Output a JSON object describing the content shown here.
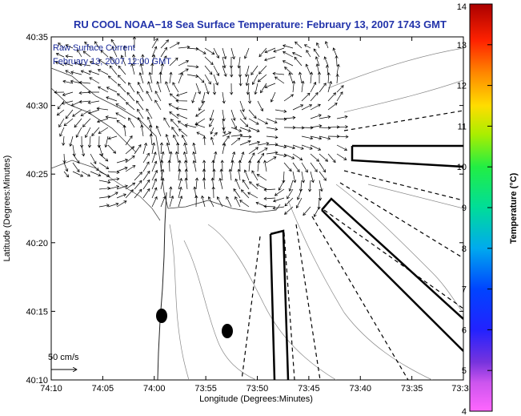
{
  "title": "RU COOL  NOAA−18  Sea Surface Temperature:  February 13, 2007 1743 GMT",
  "legend": {
    "line1": "Raw Surface Current",
    "line2": "February 13, 2007 12:00 GMT",
    "scale_label": "50 cm/s"
  },
  "chart_data": {
    "type": "map",
    "xlabel": "Longitude (Degrees:Minutes)",
    "ylabel": "Latitude (Degrees:Minutes)",
    "x_ticks": [
      "74:10",
      "74:05",
      "74:00",
      "73:55",
      "73:50",
      "73:45",
      "73:40",
      "73:35",
      "73:3"
    ],
    "y_ticks": [
      "40:35",
      "40:30",
      "40:25",
      "40:20",
      "40:15",
      "40:10"
    ],
    "xlim": [
      -74.1667,
      -73.5
    ],
    "ylim": [
      40.1667,
      40.5833
    ],
    "colorbar": {
      "label": "Temperature (°C)",
      "range": [
        4,
        14
      ],
      "ticks": [
        "4",
        "5",
        "6",
        "7",
        "8",
        "9",
        "10",
        "11",
        "12",
        "13",
        "14"
      ]
    }
  }
}
